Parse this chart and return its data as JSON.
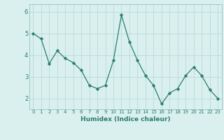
{
  "x": [
    0,
    1,
    2,
    3,
    4,
    5,
    6,
    7,
    8,
    9,
    10,
    11,
    12,
    13,
    14,
    15,
    16,
    17,
    18,
    19,
    20,
    21,
    22,
    23
  ],
  "y": [
    5.0,
    4.75,
    3.6,
    4.2,
    3.85,
    3.65,
    3.3,
    2.6,
    2.45,
    2.6,
    3.75,
    5.85,
    4.6,
    3.75,
    3.05,
    2.6,
    1.75,
    2.25,
    2.45,
    3.05,
    3.45,
    3.05,
    2.4,
    2.0
  ],
  "line_color": "#2e7d6e",
  "marker_color": "#2e7d6e",
  "bg_color": "#d9f0ee",
  "grid_color": "#b8dbd8",
  "xlabel": "Humidex (Indice chaleur)",
  "ylim": [
    1.5,
    6.35
  ],
  "xlim": [
    -0.5,
    23.5
  ],
  "yticks": [
    2,
    3,
    4,
    5,
    6
  ],
  "xticks": [
    0,
    1,
    2,
    3,
    4,
    5,
    6,
    7,
    8,
    9,
    10,
    11,
    12,
    13,
    14,
    15,
    16,
    17,
    18,
    19,
    20,
    21,
    22,
    23
  ]
}
